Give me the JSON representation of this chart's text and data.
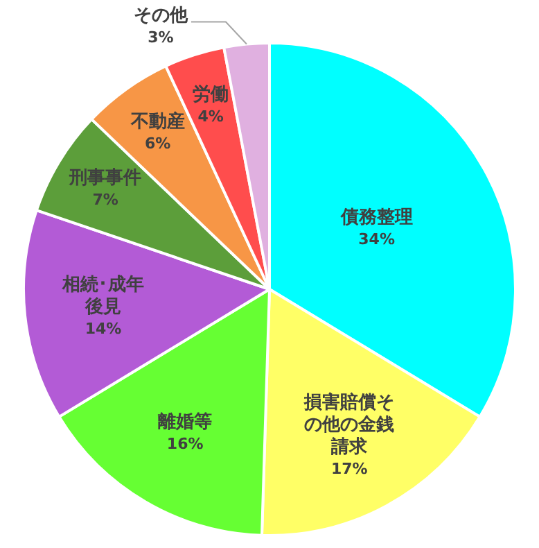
{
  "chart_data": {
    "type": "pie",
    "categories": [
      "債務整理",
      "損害賠償その他の金銭請求",
      "離婚等",
      "相続･成年後見",
      "刑事事件",
      "不動産",
      "労働",
      "その他"
    ],
    "values": [
      34,
      17,
      16,
      14,
      7,
      6,
      4,
      3
    ],
    "value_labels": [
      "34%",
      "17%",
      "16%",
      "14%",
      "7%",
      "6%",
      "4%",
      "3%"
    ],
    "colors": [
      "#00ffff",
      "#ffff66",
      "#66ff33",
      "#b35bd6",
      "#5c9e3a",
      "#f79646",
      "#ff4d4d",
      "#e0b0e0"
    ],
    "legend": false
  }
}
